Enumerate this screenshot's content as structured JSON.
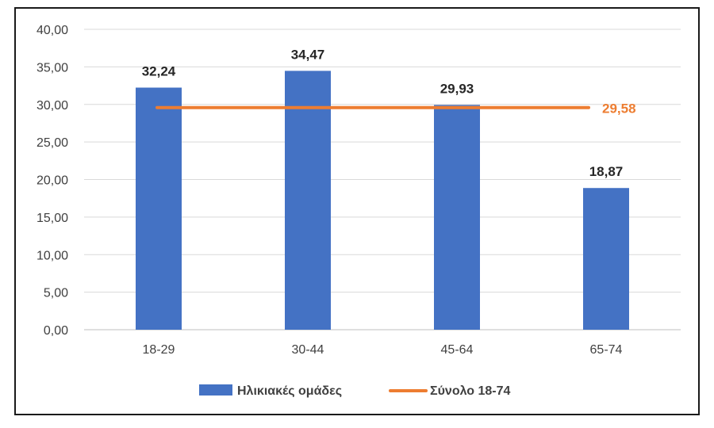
{
  "chart_data": {
    "type": "bar",
    "categories": [
      "18-29",
      "30-44",
      "45-64",
      "65-74"
    ],
    "series": [
      {
        "name": "Ηλικιακές ομάδες",
        "type": "bar",
        "color": "#4472C4",
        "values": [
          32.24,
          34.47,
          29.93,
          18.87
        ],
        "labels": [
          "32,24",
          "34,47",
          "29,93",
          "18,87"
        ]
      },
      {
        "name": "Σύνολο 18-74",
        "type": "line",
        "color": "#ED7D31",
        "value": 29.58,
        "label": "29,58"
      }
    ],
    "title": "",
    "xlabel": "",
    "ylabel": "",
    "ylim": [
      0,
      40
    ],
    "yticks": [
      "0,00",
      "5,00",
      "10,00",
      "15,00",
      "20,00",
      "25,00",
      "30,00",
      "35,00",
      "40,00"
    ],
    "grid": true,
    "legend_position": "bottom"
  }
}
